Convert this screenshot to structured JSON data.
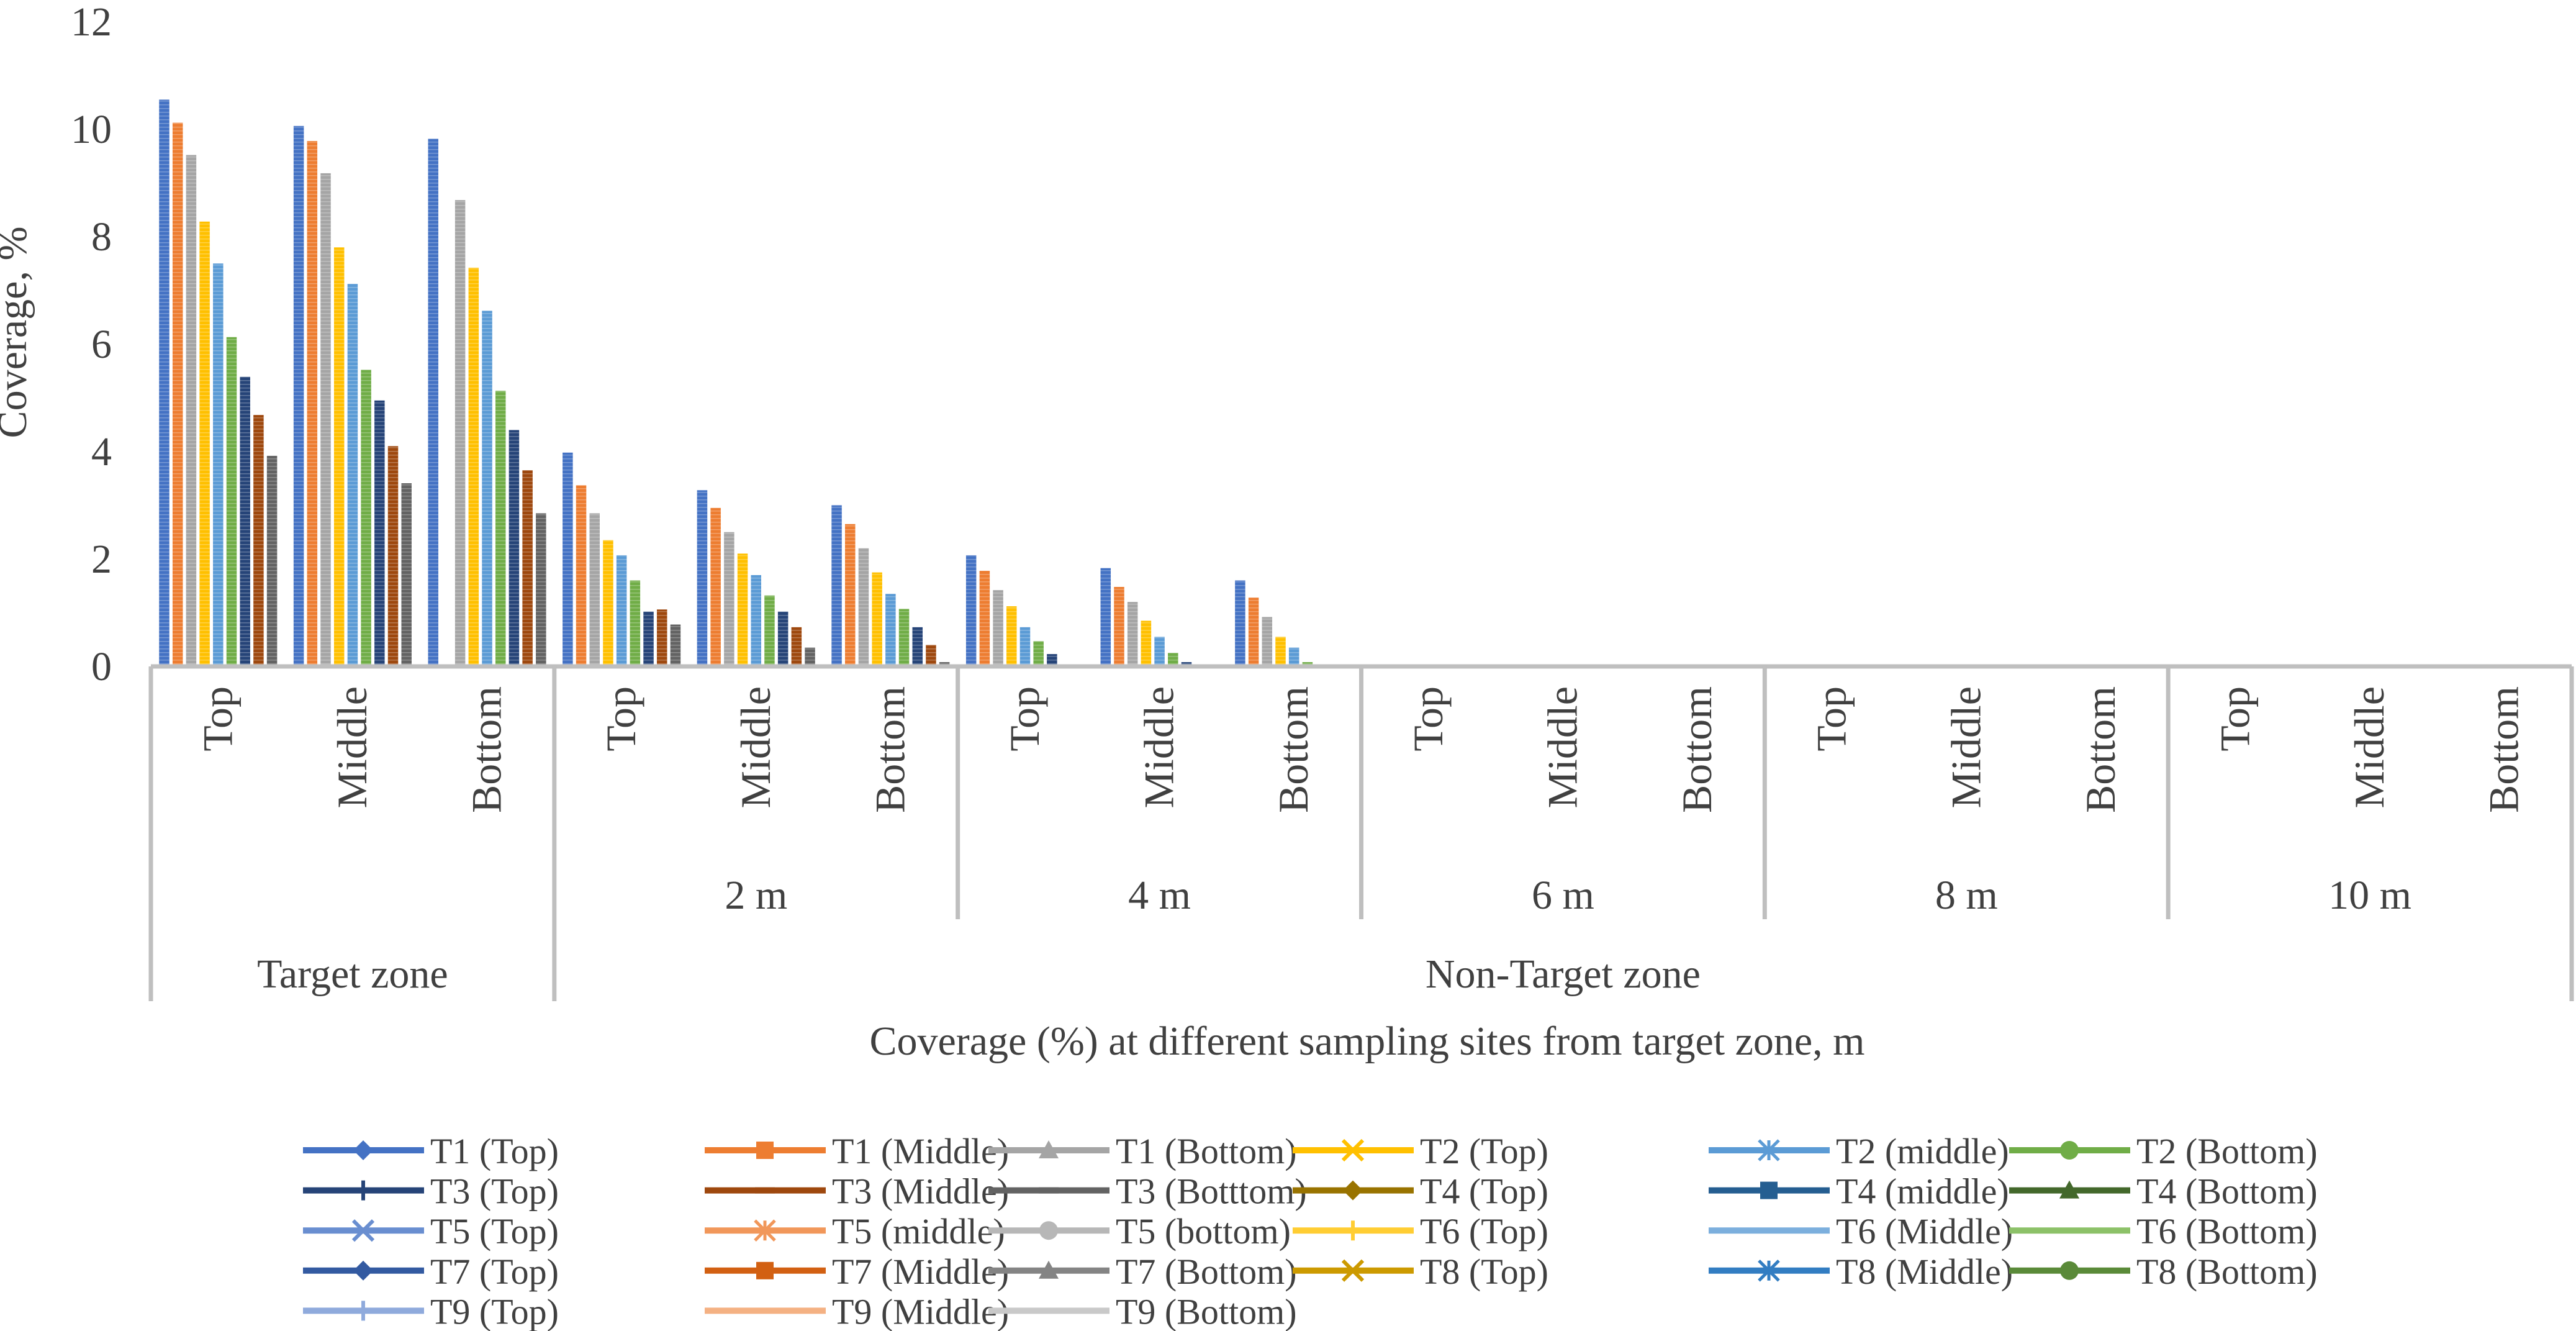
{
  "chart_data": {
    "type": "bar",
    "title": "",
    "ylabel": "Coverage, %",
    "xlabel": "Coverage (%) at different sampling sites from target zone, m",
    "ylim": [
      0,
      12
    ],
    "yticks": [
      "0",
      "2",
      "4",
      "6",
      "8",
      "10",
      "12"
    ],
    "grid": false,
    "legend_position": "bottom",
    "categories": [
      "Top",
      "Middle",
      "Bottom",
      "Top",
      "Middle",
      "Bottom",
      "Top",
      "Middle",
      "Bottom",
      "Top",
      "Middle",
      "Bottom",
      "Top",
      "Middle",
      "Bottom",
      "Top",
      "Middle",
      "Bottom"
    ],
    "distance_groups": [
      "",
      "2 m",
      "4 m",
      "6 m",
      "8 m",
      "10 m"
    ],
    "zone_groups": [
      {
        "label": "Target zone",
        "span": 1
      },
      {
        "label": "Non-Target zone",
        "span": 5
      }
    ],
    "bars_per_category": [
      [
        10.55,
        10.12,
        9.52,
        8.28,
        7.5,
        6.13,
        5.39,
        4.68,
        3.92
      ],
      [
        10.06,
        9.78,
        9.18,
        7.8,
        7.12,
        5.52,
        4.95,
        4.1,
        3.41
      ],
      [
        9.82,
        0,
        8.68,
        7.42,
        6.62,
        5.13,
        4.4,
        3.65,
        2.85
      ],
      [
        3.98,
        3.37,
        2.85,
        2.35,
        2.07,
        1.6,
        1.02,
        1.06,
        0.78
      ],
      [
        3.28,
        2.95,
        2.5,
        2.1,
        1.7,
        1.32,
        1.02,
        0.73,
        0.35
      ],
      [
        3.0,
        2.65,
        2.2,
        1.75,
        1.35,
        1.07,
        0.73,
        0.4,
        0.08
      ],
      [
        2.07,
        1.78,
        1.42,
        1.12,
        0.73,
        0.47,
        0.23,
        0,
        0
      ],
      [
        1.83,
        1.48,
        1.2,
        0.85,
        0.55,
        0.25,
        0.08,
        0,
        0
      ],
      [
        1.6,
        1.28,
        0.92,
        0.55,
        0.35,
        0.08,
        0,
        0,
        0
      ],
      [
        0,
        0,
        0,
        0,
        0,
        0,
        0,
        0,
        0
      ],
      [
        0,
        0,
        0,
        0,
        0,
        0,
        0,
        0,
        0
      ],
      [
        0,
        0,
        0,
        0,
        0,
        0,
        0,
        0,
        0
      ],
      [
        0,
        0,
        0,
        0,
        0,
        0,
        0,
        0,
        0
      ],
      [
        0,
        0,
        0,
        0,
        0,
        0,
        0,
        0,
        0
      ],
      [
        0,
        0,
        0,
        0,
        0,
        0,
        0,
        0,
        0
      ],
      [
        0,
        0,
        0,
        0,
        0,
        0,
        0,
        0,
        0
      ],
      [
        0,
        0,
        0,
        0,
        0,
        0,
        0,
        0,
        0
      ],
      [
        0,
        0,
        0,
        0,
        0,
        0,
        0,
        0,
        0
      ]
    ],
    "bar_colors": [
      "#4472c4",
      "#ed7d31",
      "#a5a5a5",
      "#ffc000",
      "#5b9bd5",
      "#70ad47",
      "#264478",
      "#9e480e",
      "#636363"
    ],
    "legend": [
      {
        "name": "T1 (Top)",
        "color": "#4472c4",
        "marker": "diamond"
      },
      {
        "name": "T1 (Middle)",
        "color": "#ed7d31",
        "marker": "square"
      },
      {
        "name": "T1 (Bottom)",
        "color": "#a5a5a5",
        "marker": "triangle"
      },
      {
        "name": "T2 (Top)",
        "color": "#ffc000",
        "marker": "x"
      },
      {
        "name": "T2 (middle)",
        "color": "#5b9bd5",
        "marker": "star"
      },
      {
        "name": "T2 (Bottom)",
        "color": "#70ad47",
        "marker": "circle"
      },
      {
        "name": "T3 (Top)",
        "color": "#264478",
        "marker": "plus"
      },
      {
        "name": "T3 (Middle)",
        "color": "#9e480e",
        "marker": "dash"
      },
      {
        "name": "T3 (Botttom)",
        "color": "#636363",
        "marker": "dash"
      },
      {
        "name": "T4 (Top)",
        "color": "#997300",
        "marker": "diamond"
      },
      {
        "name": "T4 (middle)",
        "color": "#255e91",
        "marker": "square"
      },
      {
        "name": "T4 (Bottom)",
        "color": "#43682b",
        "marker": "triangle"
      },
      {
        "name": "T5 (Top)",
        "color": "#698ed0",
        "marker": "x"
      },
      {
        "name": "T5 (middle)",
        "color": "#f1975a",
        "marker": "star"
      },
      {
        "name": "T5 (bottom)",
        "color": "#b7b7b7",
        "marker": "circle"
      },
      {
        "name": "T6 (Top)",
        "color": "#ffcd33",
        "marker": "plus"
      },
      {
        "name": "T6 (Middle)",
        "color": "#7cafdd",
        "marker": "none"
      },
      {
        "name": "T6 (Bottom)",
        "color": "#8cc168",
        "marker": "none"
      },
      {
        "name": "T7 (Top)",
        "color": "#335aa1",
        "marker": "diamond"
      },
      {
        "name": "T7 (Middle)",
        "color": "#d26012",
        "marker": "square"
      },
      {
        "name": "T7 (Bottom)",
        "color": "#848484",
        "marker": "triangle"
      },
      {
        "name": "T8 (Top)",
        "color": "#cc9a00",
        "marker": "x"
      },
      {
        "name": "T8 (Middle)",
        "color": "#327dc2",
        "marker": "star"
      },
      {
        "name": "T8 (Bottom)",
        "color": "#5a8a39",
        "marker": "circle"
      },
      {
        "name": "T9 (Top)",
        "color": "#8faadc",
        "marker": "plus"
      },
      {
        "name": "T9 (Middle)",
        "color": "#f4b183",
        "marker": "none"
      },
      {
        "name": "T9 (Bottom)",
        "color": "#c9c9c9",
        "marker": "none"
      }
    ]
  }
}
